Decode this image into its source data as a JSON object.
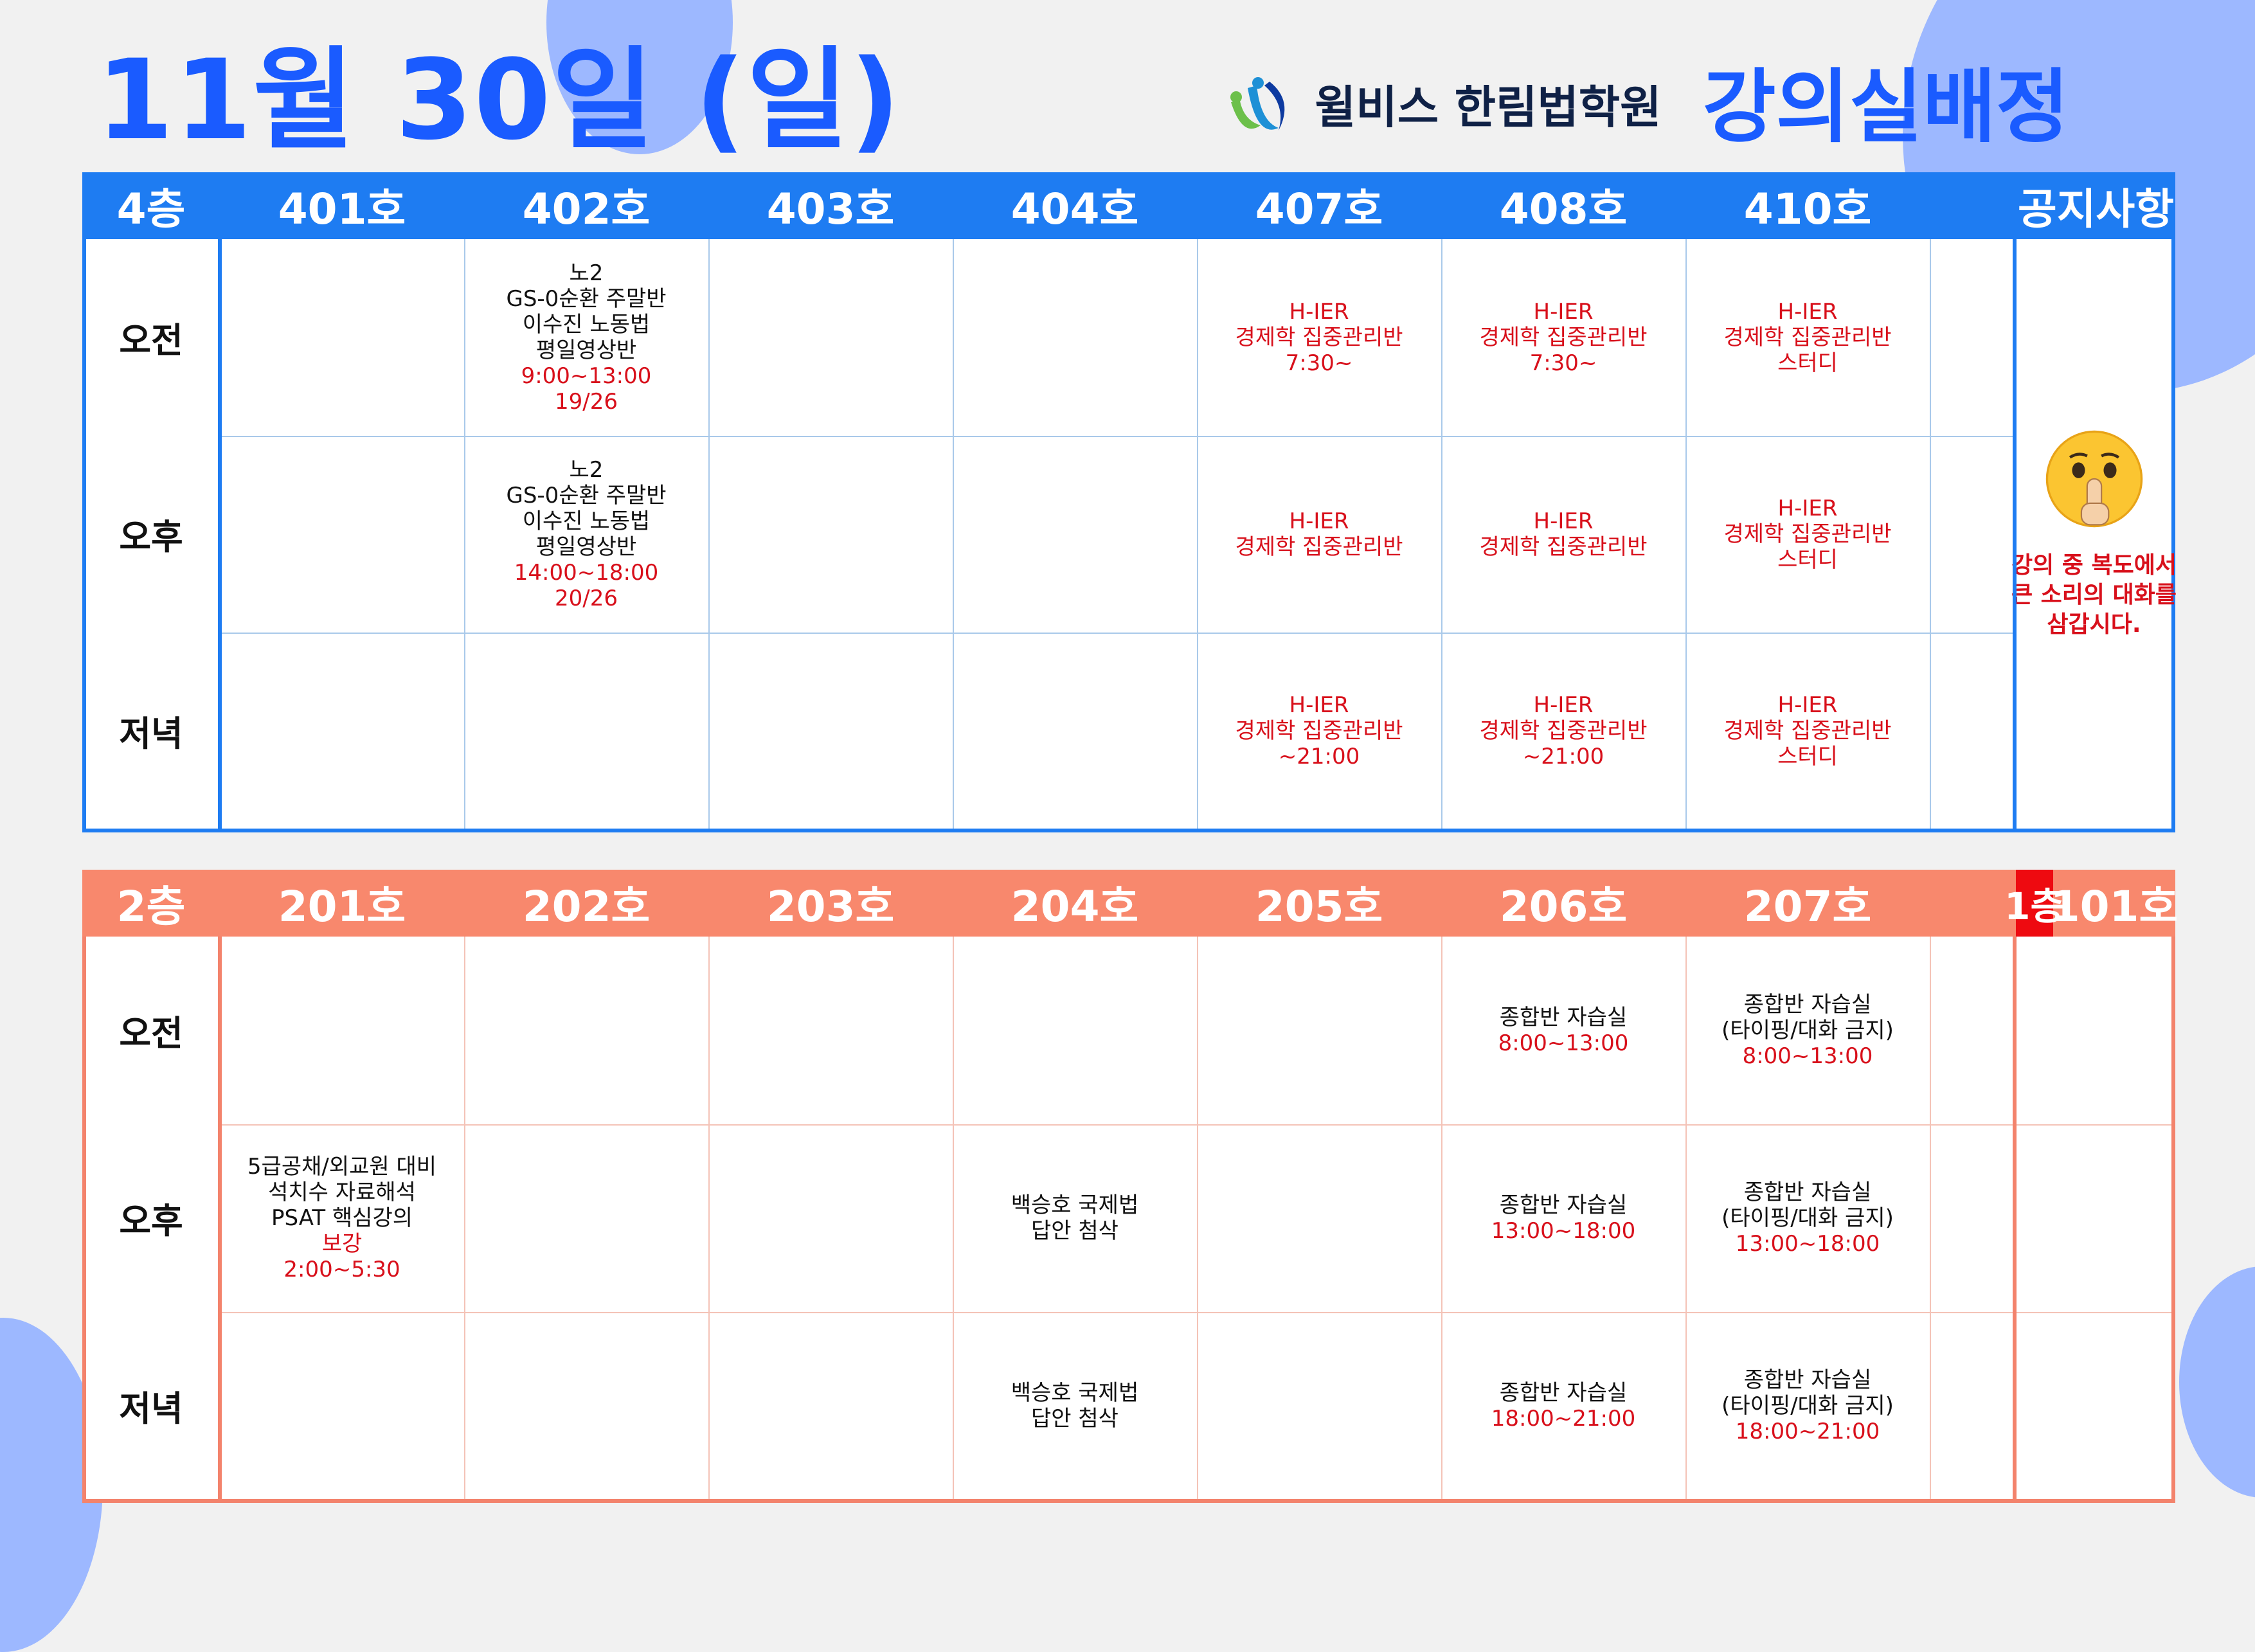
{
  "title": "11월 30일 (일)",
  "brand": {
    "name": "윌비스 한림법학원",
    "subtitle": "강의실배정"
  },
  "floor4": {
    "floor_label": "4층",
    "rooms": [
      "401호",
      "402호",
      "403호",
      "404호",
      "407호",
      "408호",
      "410호"
    ],
    "notice_header": "공지사항",
    "rows": [
      {
        "label": "오전",
        "cells": [
          [],
          [
            {
              "t": "노2"
            },
            {
              "t": "GS-0순환 주말반"
            },
            {
              "t": "이수진 노동법"
            },
            {
              "t": "평일영상반"
            },
            {
              "t": "9:00~13:00",
              "red": true
            },
            {
              "t": "19/26",
              "red": true
            }
          ],
          [],
          [],
          [
            {
              "t": "H-IER",
              "red": true
            },
            {
              "t": "경제학 집중관리반",
              "red": true
            },
            {
              "t": "7:30~",
              "red": true
            }
          ],
          [
            {
              "t": "H-IER",
              "red": true
            },
            {
              "t": "경제학 집중관리반",
              "red": true
            },
            {
              "t": "7:30~",
              "red": true
            }
          ],
          [
            {
              "t": "H-IER",
              "red": true
            },
            {
              "t": "경제학 집중관리반",
              "red": true
            },
            {
              "t": "스터디",
              "red": true
            }
          ]
        ]
      },
      {
        "label": "오후",
        "cells": [
          [],
          [
            {
              "t": "노2"
            },
            {
              "t": "GS-0순환 주말반"
            },
            {
              "t": "이수진 노동법"
            },
            {
              "t": "평일영상반"
            },
            {
              "t": "14:00~18:00",
              "red": true
            },
            {
              "t": "20/26",
              "red": true
            }
          ],
          [],
          [],
          [
            {
              "t": "H-IER",
              "red": true
            },
            {
              "t": "경제학 집중관리반",
              "red": true
            }
          ],
          [
            {
              "t": "H-IER",
              "red": true
            },
            {
              "t": "경제학 집중관리반",
              "red": true
            }
          ],
          [
            {
              "t": "H-IER",
              "red": true
            },
            {
              "t": "경제학 집중관리반",
              "red": true
            },
            {
              "t": "스터디",
              "red": true
            }
          ]
        ]
      },
      {
        "label": "저녁",
        "cells": [
          [],
          [],
          [],
          [],
          [
            {
              "t": "H-IER",
              "red": true
            },
            {
              "t": "경제학 집중관리반",
              "red": true
            },
            {
              "t": "~21:00",
              "red": true
            }
          ],
          [
            {
              "t": "H-IER",
              "red": true
            },
            {
              "t": "경제학 집중관리반",
              "red": true
            },
            {
              "t": "~21:00",
              "red": true
            }
          ],
          [
            {
              "t": "H-IER",
              "red": true
            },
            {
              "t": "경제학 집중관리반",
              "red": true
            },
            {
              "t": "스터디",
              "red": true
            }
          ]
        ]
      }
    ],
    "notice_lines": [
      "강의 중 복도에서",
      "큰 소리의 대화를",
      "삼갑시다."
    ]
  },
  "floor2": {
    "floor_label": "2층",
    "rooms": [
      "201호",
      "202호",
      "203호",
      "204호",
      "205호",
      "206호",
      "207호"
    ],
    "floor1_label": "1층",
    "floor1_room": "101호",
    "rows": [
      {
        "label": "오전",
        "cells": [
          [],
          [],
          [],
          [],
          [],
          [
            {
              "t": "종합반 자습실"
            },
            {
              "t": "8:00~13:00",
              "red": true
            }
          ],
          [
            {
              "t": "종합반 자습실"
            },
            {
              "t": "(타이핑/대화 금지)"
            },
            {
              "t": "8:00~13:00",
              "red": true
            }
          ],
          []
        ]
      },
      {
        "label": "오후",
        "cells": [
          [
            {
              "t": "5급공채/외교원 대비"
            },
            {
              "t": "석치수 자료해석"
            },
            {
              "t": "PSAT 핵심강의"
            },
            {
              "t": "보강",
              "red": true
            },
            {
              "t": "2:00~5:30",
              "red": true
            }
          ],
          [],
          [],
          [
            {
              "t": "백승호 국제법"
            },
            {
              "t": "답안 첨삭"
            }
          ],
          [],
          [
            {
              "t": "종합반 자습실"
            },
            {
              "t": "13:00~18:00",
              "red": true
            }
          ],
          [
            {
              "t": "종합반 자습실"
            },
            {
              "t": "(타이핑/대화 금지)"
            },
            {
              "t": "13:00~18:00",
              "red": true
            }
          ],
          []
        ]
      },
      {
        "label": "저녁",
        "cells": [
          [],
          [],
          [],
          [
            {
              "t": "백승호 국제법"
            },
            {
              "t": "답안 첨삭"
            }
          ],
          [],
          [
            {
              "t": "종합반 자습실"
            },
            {
              "t": "18:00~21:00",
              "red": true
            }
          ],
          [
            {
              "t": "종합반 자습실"
            },
            {
              "t": "(타이핑/대화 금지)"
            },
            {
              "t": "18:00~21:00",
              "red": true
            }
          ],
          []
        ]
      }
    ]
  }
}
